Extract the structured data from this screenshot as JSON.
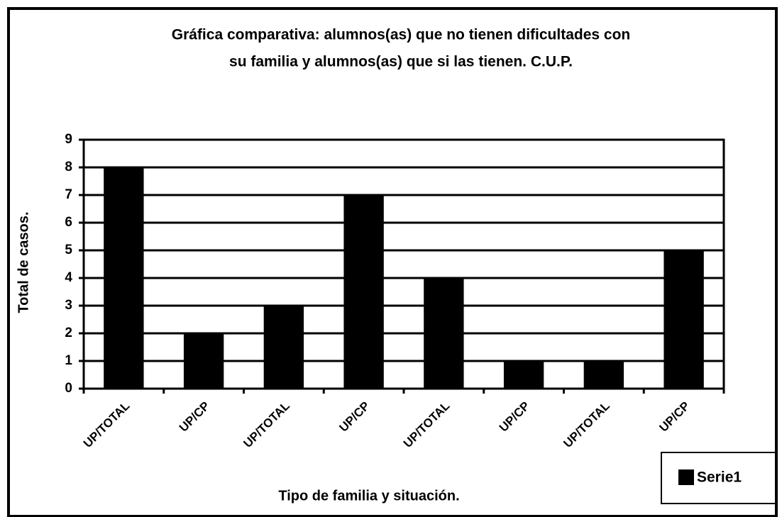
{
  "chart_data": {
    "type": "bar",
    "title": [
      "Gráfica comparativa: alumnos(as) que no tienen dificultades con",
      "su familia y alumnos(as) que si las tienen. C.U.P."
    ],
    "x_label": "Tipo de familia y situación.",
    "y_label": "Total de casos.",
    "categories": [
      "UP/TOTAL",
      "UP/CP",
      "UP/TOTAL",
      "UP/CP",
      "UP/TOTAL",
      "UP/CP",
      "UP/TOTAL",
      "UP/CP"
    ],
    "series": [
      {
        "name": "Serie1",
        "color": "#000000",
        "values": [
          8,
          2,
          3,
          7,
          4,
          1,
          1,
          5
        ]
      }
    ],
    "ylim": [
      0,
      9
    ],
    "yticks": [
      0,
      1,
      2,
      3,
      4,
      5,
      6,
      7,
      8,
      9
    ],
    "grid": true,
    "legend": "bottom-right"
  }
}
